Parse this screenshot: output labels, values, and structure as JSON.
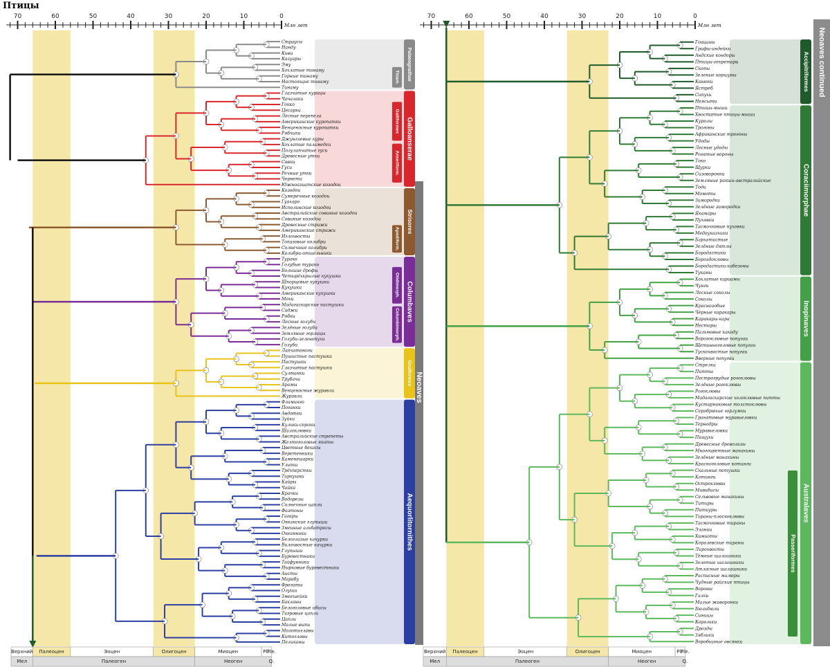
{
  "title": "Птицы",
  "axis_label": "Млн лет",
  "ticks": [
    "70",
    "60",
    "50",
    "40",
    "30",
    "20",
    "10",
    "0"
  ],
  "neoaves_label": "Neoaves",
  "continued_label": "Neoaves continued",
  "colors": {
    "black": "#111111",
    "red": "#c9252b",
    "brown": "#8b5a2b",
    "purple": "#6a2a8a",
    "yellow": "#e8c31a",
    "lightblue": "#8fb9d6",
    "blue": "#2a3f8f",
    "darkgreen": "#1f5a2a",
    "green": "#3d8c3d",
    "highlight": "#f5e7a8"
  },
  "time_scale": {
    "left": [
      {
        "row": 1,
        "cells": [
          "Верхний",
          "Палеоцен",
          "Эоцен",
          "Олигоцен",
          "Миоцен",
          "Pli.",
          "Ple."
        ]
      },
      {
        "row": 2,
        "cells": [
          "Мел",
          "Палеоген",
          "Неоген",
          "Q."
        ]
      }
    ],
    "right": [
      {
        "row": 1,
        "cells": [
          "Верхний",
          "Палеоцен",
          "Эоцен",
          "Олигоцен",
          "Миоцен",
          "Pli.",
          "Ple."
        ]
      },
      {
        "row": 2,
        "cells": [
          "Мел",
          "Палеоген",
          "Неоген",
          "Q."
        ]
      }
    ]
  },
  "panels": {
    "left": {
      "groups": [
        {
          "id": "palaeognathae",
          "label": "Palaeognathae",
          "sub": "Tinam.",
          "color": "#8a8a8a",
          "taxa": [
            "Страусы",
            "Нанду",
            "Киви",
            "Казуары",
            "Эму",
            "Хохлатые тинаму",
            "Горные тинаму",
            "Настоящие тинаму",
            "Тинаму"
          ]
        },
        {
          "id": "galloanserae",
          "label": "Galloanserae",
          "sub": "Galliformes",
          "sub2": "Anseriform.",
          "color": "#d8262c",
          "taxa": [
            "Глазчатые курицы",
            "Чачалаки",
            "Гокко",
            "Цесарки",
            "Лесные перепела",
            "Американские куропатки",
            "Венценосные куропатки",
            "Рябчики",
            "Джунглевые куры",
            "Хохлатые паламедеи",
            "Полулапчатые гуси",
            "Древесные утки",
            "Савки",
            "Гуси",
            "Речные утки",
            "Чернети",
            "Южноазиатские козодои"
          ]
        },
        {
          "id": "strisores",
          "label": "Strisores",
          "sub": "Apodiform.",
          "color": "#8c5a2e",
          "taxa": [
            "Козодои",
            "Сумеречные козодои",
            "Гуахаро",
            "Исполинские козодои",
            "Австралийские совиные козодои",
            "Совиные козодои",
            "Древесные стрижи",
            "Американские стрижи",
            "Иглохвосты",
            "Топазовые колибри",
            "Солнечные колибри",
            "Колибри-отшельники"
          ]
        },
        {
          "id": "columbaves",
          "label": "Columbaves",
          "sub": "Otidimorph.",
          "sub2": "Columbimorph.",
          "color": "#7a2d96",
          "taxa": [
            "Турако",
            "Голубые турако",
            "Большие дрофы",
            "Четырёхкрылые кукушки",
            "Шпорцевые кукушки",
            "Кукушки",
            "Американские кукушки",
            "Мохи",
            "Мадагаскарские пастушки",
            "Саджи",
            "Рябки",
            "Лесные голуби",
            "Зелёные голуби",
            "Земляные горлицы",
            "Голуби-зеленопухи",
            "Голуби"
          ]
        },
        {
          "id": "gruiformes",
          "label": "Gruiformes",
          "color": "#e8c31a",
          "taxa": [
            "Лапчатоноги",
            "Пушистые пастушки",
            "Пастушки",
            "Глазчатые пастушки",
            "Султанки",
            "Трубачи",
            "Арамы",
            "Венценосные журавли",
            "Журавли"
          ]
        },
        {
          "id": "aequorlitornithes",
          "label": "Aequorlitornithes",
          "color": "#2b3fa3",
          "taxa": [
            "Фламинго",
            "Поганки",
            "Авдотки",
            "Зуйки",
            "Кулики-сороки",
            "Шилоклювки",
            "Австралийские стрепеты",
            "Желтоголовые якаты",
            "Цветные бекасы",
            "Веретенники",
            "Каменешарки",
            "Улиты",
            "Трёхперстки",
            "Тиркушки",
            "Кайры",
            "Чайки",
            "Крачки",
            "Водорезы",
            "Солнечные цапли",
            "Фаэтоны",
            "Гагары",
            "Океанские глупыши",
            "Змеиные альбатросы",
            "Океанники",
            "Белоглазые качурки",
            "Вилохвостые качурки",
            "Глупыши",
            "Буревестники",
            "Тайфунники",
            "Нырковые буревестники",
            "Аисты",
            "Марабу",
            "Фрегаты",
            "Олуши",
            "Змеешейки",
            "Бакланы",
            "Белоголовые ибисы",
            "Тигровые цапли",
            "Цапли",
            "Малые выпи",
            "Молотоглавы",
            "Китоглавы",
            "Пеликаны"
          ]
        }
      ]
    },
    "right": {
      "groups": [
        {
          "id": "accipitriformes",
          "label": "Accipitriformes",
          "color": "#1f5a2a",
          "taxa": [
            "Гоацины",
            "Грифы-индейки",
            "Андские кондоры",
            "Птицы-секретари",
            "Скопы",
            "Зеленые коршуны",
            "Канюки",
            "Ястреб",
            "Сипухи",
            "Неясыти"
          ]
        },
        {
          "id": "coraciimorphae",
          "label": "Coraciimorphae",
          "color": "#2e7a34",
          "taxa": [
            "Птицы-мыши",
            "Хвостатые птицы-мыши",
            "Куролы",
            "Трогоны",
            "Африканские трогоны",
            "Удоды",
            "Лесные удоды",
            "Рогатые вороны",
            "Токо",
            "Щурки",
            "Сизоворонки",
            "Земляные ракши-австралийские",
            "Тоди",
            "Момоты",
            "Зимородки",
            "Зелёные зимородки",
            "Якамары",
            "Пуховки",
            "Тасмочковые пуховки",
            "Медоуказчики",
            "Бархатистые",
            "Зелёные дятлы",
            "Бородастики",
            "Бороздоклювы",
            "Бородастики-кабезоны",
            "Туканы"
          ]
        },
        {
          "id": "inopinaves",
          "label": "Inopinaves",
          "color": "#43a047",
          "taxa": [
            "Хохлатые кариамы",
            "Чунги",
            "Лесные соколы",
            "Соколы",
            "Краснозобые",
            "Чёрные каракары",
            "Каракары-кара",
            "Несторы",
            "Пальмовые какаду",
            "Ворогоклювые попугаи",
            "Щетинноголовые попугаи",
            "Тускохвостые попугаи",
            "Вверные попугаи"
          ]
        },
        {
          "id": "australaves",
          "label": "Australaves",
          "color": "#5cb85c",
          "taxa": [
            "Стрелки",
            "Питты",
            "Пестрогрудые рогоклювы",
            "Зелёные рогоклювы",
            "Рогоклювы",
            "Мадагаскарские холоклювые питты",
            "Кустарниковые толстоклювы",
            "Серобрюхие горлумки",
            "Гранатовые муравьеловки",
            "Тернодры",
            "Муравьеловки",
            "Пищухи",
            "Древесные древолазы",
            "Многоцветные манакины",
            "Зелёные манакины",
            "Красноголовые котинги",
            "Скальные петушки",
            "Котинги",
            "Остроклювы",
            "Мивибисы",
            "Сельвовые манакины",
            "Титиры",
            "Питиуры",
            "Тираны-плоскоклювы",
            "Тасмочковые тираны",
            "Элании",
            "Химиоты",
            "Королевские тираны",
            "Лирохвосты",
            "Тёмные шалашники",
            "Золотые шалашники",
            "Атласные шалашники",
            "Расписные малюры",
            "Чудные райские птицы",
            "Вороны",
            "Галки",
            "Малые жаворонки",
            "Бюльбюли",
            "Синицы",
            "Корольки",
            "Дрозды",
            "Зяблики",
            "Воробьиные овсянки"
          ]
        },
        {
          "id": "passeriformes",
          "label": "Passeriformes",
          "color": "#3a8f3a"
        }
      ]
    }
  }
}
